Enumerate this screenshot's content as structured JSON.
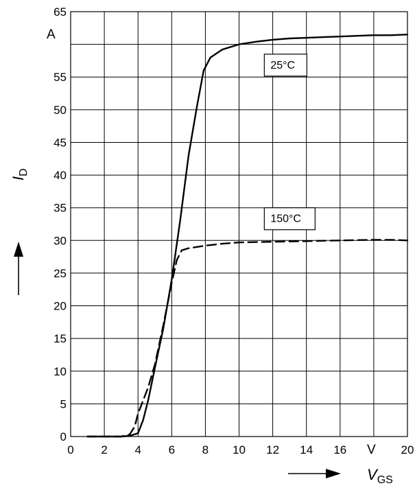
{
  "chart_data": {
    "type": "line",
    "xlabel": "V",
    "xlabel_sub": "GS",
    "ylabel": "I",
    "ylabel_sub": "D",
    "x_unit": "V",
    "y_unit": "A",
    "xlim": [
      0,
      20
    ],
    "ylim": [
      0,
      65
    ],
    "x_ticks": [
      0,
      2,
      4,
      6,
      8,
      10,
      12,
      14,
      16,
      20
    ],
    "y_ticks": [
      0,
      5,
      10,
      15,
      20,
      25,
      30,
      35,
      40,
      45,
      50,
      55,
      65
    ],
    "grid": true,
    "series": [
      {
        "name": "25°C",
        "line_style": "solid",
        "x": [
          1.0,
          2.0,
          3.0,
          3.5,
          4.0,
          4.3,
          4.6,
          5.0,
          5.5,
          6.0,
          6.5,
          7.0,
          7.5,
          7.9,
          8.3,
          9.0,
          10.0,
          11.0,
          12.0,
          13.0,
          14.0,
          15.0,
          16.0,
          17.0,
          18.0,
          19.0,
          20.0
        ],
        "y": [
          0,
          0,
          0,
          0.1,
          0.5,
          2.5,
          5.5,
          10.5,
          16.5,
          24,
          33,
          43,
          50.5,
          56,
          58,
          59.2,
          60,
          60.4,
          60.7,
          60.9,
          61.0,
          61.1,
          61.2,
          61.3,
          61.4,
          61.4,
          61.5
        ]
      },
      {
        "name": "150°C",
        "line_style": "dashed",
        "x": [
          1.0,
          2.0,
          3.0,
          3.5,
          3.8,
          4.0,
          4.3,
          4.6,
          5.0,
          5.5,
          6.0,
          6.3,
          6.6,
          7.0,
          8.0,
          9.0,
          10.0,
          12.0,
          14.0,
          16.0,
          18.0,
          19.0,
          20.0
        ],
        "y": [
          0,
          0,
          0,
          0.3,
          1.5,
          3.5,
          5.5,
          7.5,
          11,
          17,
          23.5,
          27,
          28.5,
          28.8,
          29.2,
          29.5,
          29.7,
          29.8,
          29.9,
          30.0,
          30.1,
          30.1,
          30.0
        ]
      }
    ],
    "annotations": [
      {
        "text": "25°C"
      },
      {
        "text": "150°C"
      }
    ]
  }
}
